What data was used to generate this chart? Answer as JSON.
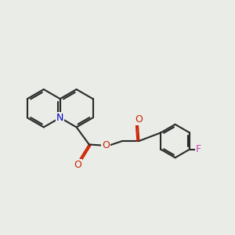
{
  "bg_color": "#eaece8",
  "bond_color": "#2a2a2a",
  "nitrogen_color": "#0000cc",
  "oxygen_color": "#cc2200",
  "fluorine_color": "#cc44aa",
  "bond_width": 1.5,
  "figsize": [
    3.0,
    3.0
  ],
  "dpi": 100,
  "xlim": [
    0,
    10
  ],
  "ylim": [
    0,
    10
  ]
}
